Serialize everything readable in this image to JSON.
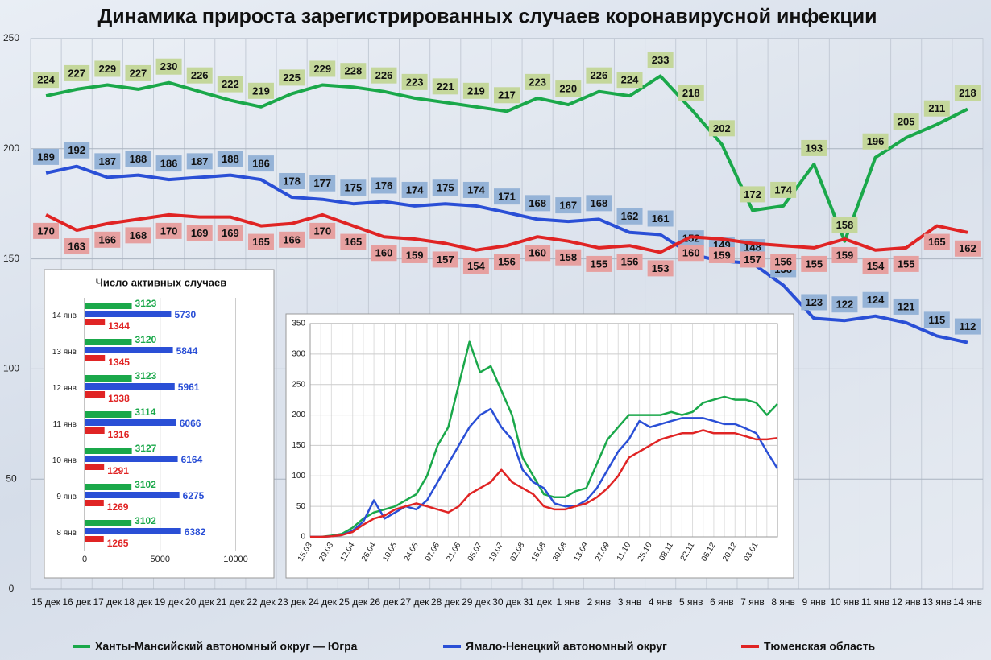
{
  "chart_data": [
    {
      "type": "line",
      "title": "Динамика прироста зарегистрированных случаев коронавирусной инфекции",
      "categories": [
        "15 дек",
        "16 дек",
        "17 дек",
        "18 дек",
        "19 дек",
        "20 дек",
        "21 дек",
        "22 дек",
        "23 дек",
        "24 дек",
        "25 дек",
        "26 дек",
        "27 дек",
        "28 дек",
        "29 дек",
        "30 дек",
        "31 дек",
        "1 янв",
        "2 янв",
        "3 янв",
        "4 янв",
        "5 янв",
        "6 янв",
        "7 янв",
        "8 янв",
        "9 янв",
        "10 янв",
        "11 янв",
        "12 янв",
        "13 янв",
        "14 янв"
      ],
      "series": [
        {
          "name": "Ханты-Мансийский автономный округ — Югра",
          "color": "#1aa84a",
          "label_color": "#c4d79b",
          "values": [
            224,
            227,
            229,
            227,
            230,
            226,
            222,
            219,
            225,
            229,
            228,
            226,
            223,
            221,
            219,
            217,
            223,
            220,
            226,
            224,
            233,
            218,
            202,
            172,
            174,
            193,
            158,
            196,
            205,
            211,
            218
          ]
        },
        {
          "name": "Ямало-Ненецкий автономный округ",
          "color": "#2a4fd6",
          "label_color": "#95b3d7",
          "values": [
            189,
            192,
            187,
            188,
            186,
            187,
            188,
            186,
            178,
            177,
            175,
            176,
            174,
            175,
            174,
            171,
            168,
            167,
            168,
            162,
            161,
            152,
            149,
            148,
            138,
            123,
            122,
            124,
            121,
            115,
            112
          ]
        },
        {
          "name": "Тюменская область",
          "color": "#e02424",
          "label_color": "#e6a0a0",
          "values": [
            170,
            163,
            166,
            168,
            170,
            169,
            169,
            165,
            166,
            170,
            165,
            160,
            159,
            157,
            154,
            156,
            160,
            158,
            155,
            156,
            153,
            160,
            159,
            157,
            156,
            155,
            159,
            154,
            155,
            165,
            162
          ]
        }
      ],
      "ylim": [
        0,
        250
      ],
      "yticks": [
        0,
        50,
        100,
        150,
        200,
        250
      ],
      "grid": true,
      "data_labels": true
    },
    {
      "type": "bar",
      "orientation": "horizontal",
      "title": "Число активных случаев",
      "categories": [
        "14 янв",
        "13 янв",
        "12 янв",
        "11 янв",
        "10 янв",
        "9 янв",
        "8 янв"
      ],
      "series": [
        {
          "color": "#1aa84a",
          "values": [
            3123,
            3120,
            3123,
            3114,
            3127,
            3102,
            3102
          ]
        },
        {
          "color": "#2a4fd6",
          "values": [
            5730,
            5844,
            5961,
            6066,
            6164,
            6275,
            6382
          ]
        },
        {
          "color": "#e02424",
          "values": [
            1344,
            1345,
            1338,
            1316,
            1291,
            1269,
            1265
          ]
        }
      ],
      "xlim": [
        0,
        12000
      ],
      "xticks": [
        0,
        5000,
        10000
      ],
      "grid": true
    },
    {
      "type": "line",
      "categories": [
        "15.03",
        null,
        "29.03",
        null,
        "12.04",
        null,
        "26.04",
        null,
        "10.05",
        null,
        "24.05",
        null,
        "07.06",
        null,
        "21.06",
        null,
        "05.07",
        null,
        "19.07",
        null,
        "02.08",
        null,
        "16.08",
        null,
        "30.08",
        null,
        "13.09",
        null,
        "27.09",
        null,
        "11.10",
        null,
        "25.10",
        null,
        "08.11",
        null,
        "22.11",
        null,
        "06.12",
        null,
        "20.12",
        null,
        "03.01",
        null,
        null
      ],
      "series": [
        {
          "color": "#1aa84a",
          "values": [
            0,
            0,
            2,
            5,
            15,
            30,
            40,
            45,
            50,
            60,
            70,
            100,
            150,
            180,
            250,
            320,
            270,
            280,
            240,
            200,
            130,
            100,
            70,
            65,
            65,
            75,
            80,
            120,
            160,
            180,
            200,
            200,
            200,
            200,
            205,
            200,
            205,
            220,
            225,
            230,
            225,
            225,
            220,
            200,
            218
          ]
        },
        {
          "color": "#2a4fd6",
          "values": [
            0,
            0,
            1,
            3,
            10,
            25,
            60,
            30,
            40,
            50,
            45,
            60,
            90,
            120,
            150,
            180,
            200,
            210,
            180,
            160,
            110,
            90,
            80,
            55,
            50,
            50,
            60,
            80,
            110,
            140,
            160,
            190,
            180,
            185,
            190,
            195,
            195,
            195,
            190,
            185,
            185,
            178,
            170,
            140,
            112
          ]
        },
        {
          "color": "#e02424",
          "values": [
            0,
            0,
            1,
            3,
            8,
            20,
            30,
            35,
            45,
            50,
            55,
            50,
            45,
            40,
            50,
            70,
            80,
            90,
            110,
            90,
            80,
            70,
            50,
            45,
            45,
            50,
            55,
            65,
            80,
            100,
            130,
            140,
            150,
            160,
            165,
            170,
            170,
            175,
            170,
            170,
            170,
            165,
            160,
            160,
            162
          ]
        }
      ],
      "ylim": [
        0,
        350
      ],
      "yticks": [
        0,
        50,
        100,
        150,
        200,
        250,
        300,
        350
      ],
      "grid": true
    }
  ]
}
